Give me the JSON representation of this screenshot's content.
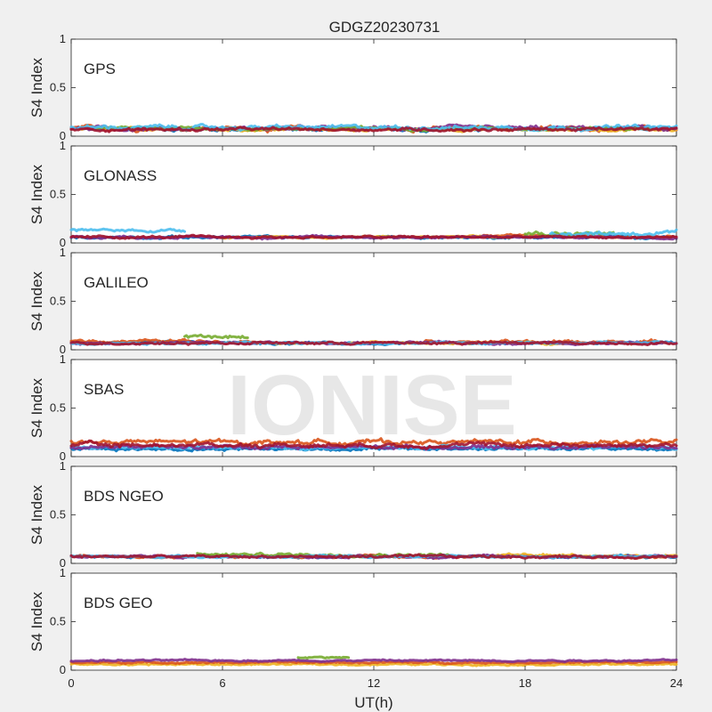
{
  "chart_data": {
    "type": "scatter",
    "title": "GDGZ20230731",
    "xlabel": "UT(h)",
    "xlim": [
      0,
      24
    ],
    "xticks": [
      0,
      6,
      12,
      18,
      24
    ],
    "watermark": "IONISE",
    "colors": [
      "#0072bd",
      "#d95319",
      "#edb120",
      "#7e2f8e",
      "#77ac30",
      "#4dbeee",
      "#a2142f"
    ],
    "panels": [
      {
        "label": "GPS",
        "ylabel": "S4 Index",
        "ylim": [
          0,
          1
        ],
        "yticks": [
          0,
          0.5,
          1
        ],
        "series": [
          {
            "color": "#0072bd",
            "segments": [
              {
                "x0": 0,
                "x1": 24,
                "level": 0.07,
                "noise": 0.015
              }
            ]
          },
          {
            "color": "#d95319",
            "segments": [
              {
                "x0": 0,
                "x1": 24,
                "level": 0.08,
                "noise": 0.02
              }
            ]
          },
          {
            "color": "#edb120",
            "segments": [
              {
                "x0": 0,
                "x1": 24,
                "level": 0.07,
                "noise": 0.015
              }
            ]
          },
          {
            "color": "#7e2f8e",
            "segments": [
              {
                "x0": 0,
                "x1": 24,
                "level": 0.08,
                "noise": 0.02
              }
            ]
          },
          {
            "color": "#77ac30",
            "segments": [
              {
                "x0": 1,
                "x1": 23,
                "level": 0.08,
                "noise": 0.015
              }
            ]
          },
          {
            "color": "#4dbeee",
            "segments": [
              {
                "x0": 0,
                "x1": 24,
                "level": 0.09,
                "noise": 0.02
              }
            ]
          },
          {
            "color": "#a2142f",
            "segments": [
              {
                "x0": 0,
                "x1": 24,
                "level": 0.07,
                "noise": 0.015
              }
            ]
          }
        ]
      },
      {
        "label": "GLONASS",
        "ylabel": "S4 Index",
        "ylim": [
          0,
          1
        ],
        "yticks": [
          0,
          0.5,
          1
        ],
        "series": [
          {
            "color": "#0072bd",
            "segments": [
              {
                "x0": 0,
                "x1": 24,
                "level": 0.06,
                "noise": 0.012
              }
            ]
          },
          {
            "color": "#d95319",
            "segments": [
              {
                "x0": 16,
                "x1": 24,
                "level": 0.07,
                "noise": 0.012
              }
            ]
          },
          {
            "color": "#edb120",
            "segments": [
              {
                "x0": 6,
                "x1": 18,
                "level": 0.06,
                "noise": 0.01
              }
            ]
          },
          {
            "color": "#7e2f8e",
            "segments": [
              {
                "x0": 0,
                "x1": 24,
                "level": 0.06,
                "noise": 0.012
              }
            ]
          },
          {
            "color": "#77ac30",
            "segments": [
              {
                "x0": 18,
                "x1": 21.5,
                "level": 0.1,
                "noise": 0.02
              }
            ]
          },
          {
            "color": "#4dbeee",
            "segments": [
              {
                "x0": 0,
                "x1": 4.5,
                "level": 0.13,
                "noise": 0.015
              },
              {
                "x0": 19,
                "x1": 24,
                "level": 0.1,
                "noise": 0.02
              }
            ]
          },
          {
            "color": "#a2142f",
            "segments": [
              {
                "x0": 0,
                "x1": 24,
                "level": 0.06,
                "noise": 0.012
              }
            ]
          }
        ]
      },
      {
        "label": "GALILEO",
        "ylabel": "S4 Index",
        "ylim": [
          0,
          1
        ],
        "yticks": [
          0,
          0.5,
          1
        ],
        "series": [
          {
            "color": "#0072bd",
            "segments": [
              {
                "x0": 0,
                "x1": 24,
                "level": 0.07,
                "noise": 0.012
              }
            ]
          },
          {
            "color": "#d95319",
            "segments": [
              {
                "x0": 0,
                "x1": 8,
                "level": 0.09,
                "noise": 0.015
              },
              {
                "x0": 14,
                "x1": 24,
                "level": 0.08,
                "noise": 0.015
              }
            ]
          },
          {
            "color": "#edb120",
            "segments": [
              {
                "x0": 8,
                "x1": 20,
                "level": 0.07,
                "noise": 0.01
              }
            ]
          },
          {
            "color": "#7e2f8e",
            "segments": [
              {
                "x0": 0,
                "x1": 24,
                "level": 0.07,
                "noise": 0.012
              }
            ]
          },
          {
            "color": "#77ac30",
            "segments": [
              {
                "x0": 4.5,
                "x1": 7,
                "level": 0.13,
                "noise": 0.02
              }
            ]
          },
          {
            "color": "#4dbeee",
            "segments": [
              {
                "x0": 0,
                "x1": 24,
                "level": 0.07,
                "noise": 0.01
              }
            ]
          },
          {
            "color": "#a2142f",
            "segments": [
              {
                "x0": 0,
                "x1": 24,
                "level": 0.07,
                "noise": 0.012
              }
            ]
          }
        ]
      },
      {
        "label": "SBAS",
        "ylabel": "S4 Index",
        "ylim": [
          0,
          1
        ],
        "yticks": [
          0,
          0.5,
          1
        ],
        "series": [
          {
            "color": "#0072bd",
            "segments": [
              {
                "x0": 0,
                "x1": 24,
                "level": 0.08,
                "noise": 0.015
              }
            ]
          },
          {
            "color": "#d95319",
            "segments": [
              {
                "x0": 0,
                "x1": 24,
                "level": 0.15,
                "noise": 0.022
              }
            ]
          },
          {
            "color": "#4dbeee",
            "segments": [
              {
                "x0": 0,
                "x1": 24,
                "level": 0.09,
                "noise": 0.015
              }
            ]
          },
          {
            "color": "#7e2f8e",
            "segments": [
              {
                "x0": 0,
                "x1": 24,
                "level": 0.1,
                "noise": 0.018
              }
            ]
          },
          {
            "color": "#a2142f",
            "segments": [
              {
                "x0": 0,
                "x1": 24,
                "level": 0.12,
                "noise": 0.02
              }
            ]
          }
        ]
      },
      {
        "label": "BDS NGEO",
        "ylabel": "S4 Index",
        "ylim": [
          0,
          1
        ],
        "yticks": [
          0,
          0.5,
          1
        ],
        "series": [
          {
            "color": "#0072bd",
            "segments": [
              {
                "x0": 0,
                "x1": 24,
                "level": 0.07,
                "noise": 0.012
              }
            ]
          },
          {
            "color": "#d95319",
            "segments": [
              {
                "x0": 0,
                "x1": 24,
                "level": 0.07,
                "noise": 0.012
              }
            ]
          },
          {
            "color": "#edb120",
            "segments": [
              {
                "x0": 16,
                "x1": 24,
                "level": 0.08,
                "noise": 0.015
              }
            ]
          },
          {
            "color": "#7e2f8e",
            "segments": [
              {
                "x0": 0,
                "x1": 24,
                "level": 0.07,
                "noise": 0.012
              }
            ]
          },
          {
            "color": "#77ac30",
            "segments": [
              {
                "x0": 5,
                "x1": 15,
                "level": 0.09,
                "noise": 0.015
              }
            ]
          },
          {
            "color": "#4dbeee",
            "segments": [
              {
                "x0": 0,
                "x1": 24,
                "level": 0.07,
                "noise": 0.01
              }
            ]
          },
          {
            "color": "#a2142f",
            "segments": [
              {
                "x0": 0,
                "x1": 24,
                "level": 0.07,
                "noise": 0.012
              }
            ]
          }
        ]
      },
      {
        "label": "BDS GEO",
        "ylabel": "S4 Index",
        "ylim": [
          0,
          1
        ],
        "yticks": [
          0,
          0.5,
          1
        ],
        "series": [
          {
            "color": "#edb120",
            "segments": [
              {
                "x0": 0,
                "x1": 24,
                "level": 0.06,
                "noise": 0.008
              }
            ]
          },
          {
            "color": "#d95319",
            "segments": [
              {
                "x0": 0,
                "x1": 24,
                "level": 0.08,
                "noise": 0.008
              }
            ]
          },
          {
            "color": "#77ac30",
            "segments": [
              {
                "x0": 9,
                "x1": 11,
                "level": 0.13,
                "noise": 0.01
              }
            ]
          },
          {
            "color": "#7e2f8e",
            "segments": [
              {
                "x0": 0,
                "x1": 24,
                "level": 0.1,
                "noise": 0.008
              }
            ]
          }
        ]
      }
    ]
  }
}
